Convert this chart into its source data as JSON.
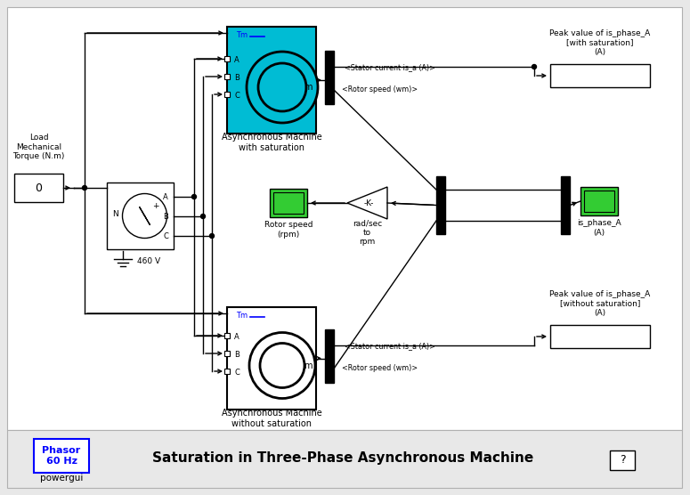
{
  "title": "Saturation in Three-Phase Asynchronous Machine",
  "bg_color": "#e8e8e8",
  "teal_color": "#00bcd4",
  "green_color": "#33cc33",
  "blue_text": "#0000ff",
  "powergui_text": "Phasor\n60 Hz",
  "powergui_sub": "powergui",
  "load_label": "Load\nMechanical\nTorque (N.m)",
  "load_val": "0",
  "voltage_label": "460 V",
  "machine1_label": "Asynchronous Machine\nwith saturation",
  "machine2_label": "Asynchronous Machine\nwithout saturation",
  "stator_label1": "<Stator current is_a (A)>",
  "rotor_wm_label1": "<Rotor speed (wm)>",
  "rotor_speed_label": "Rotor speed\n(rpm)",
  "gain_label": "rad/sec\nto\nrpm",
  "is_phase_label": "is_phase_A\n(A)",
  "peak1_title": "Peak value of is_phase_A\n[with saturation]\n(A)",
  "peak2_title": "Peak value of is_phase_A\n[without saturation]\n(A)",
  "question": "?"
}
